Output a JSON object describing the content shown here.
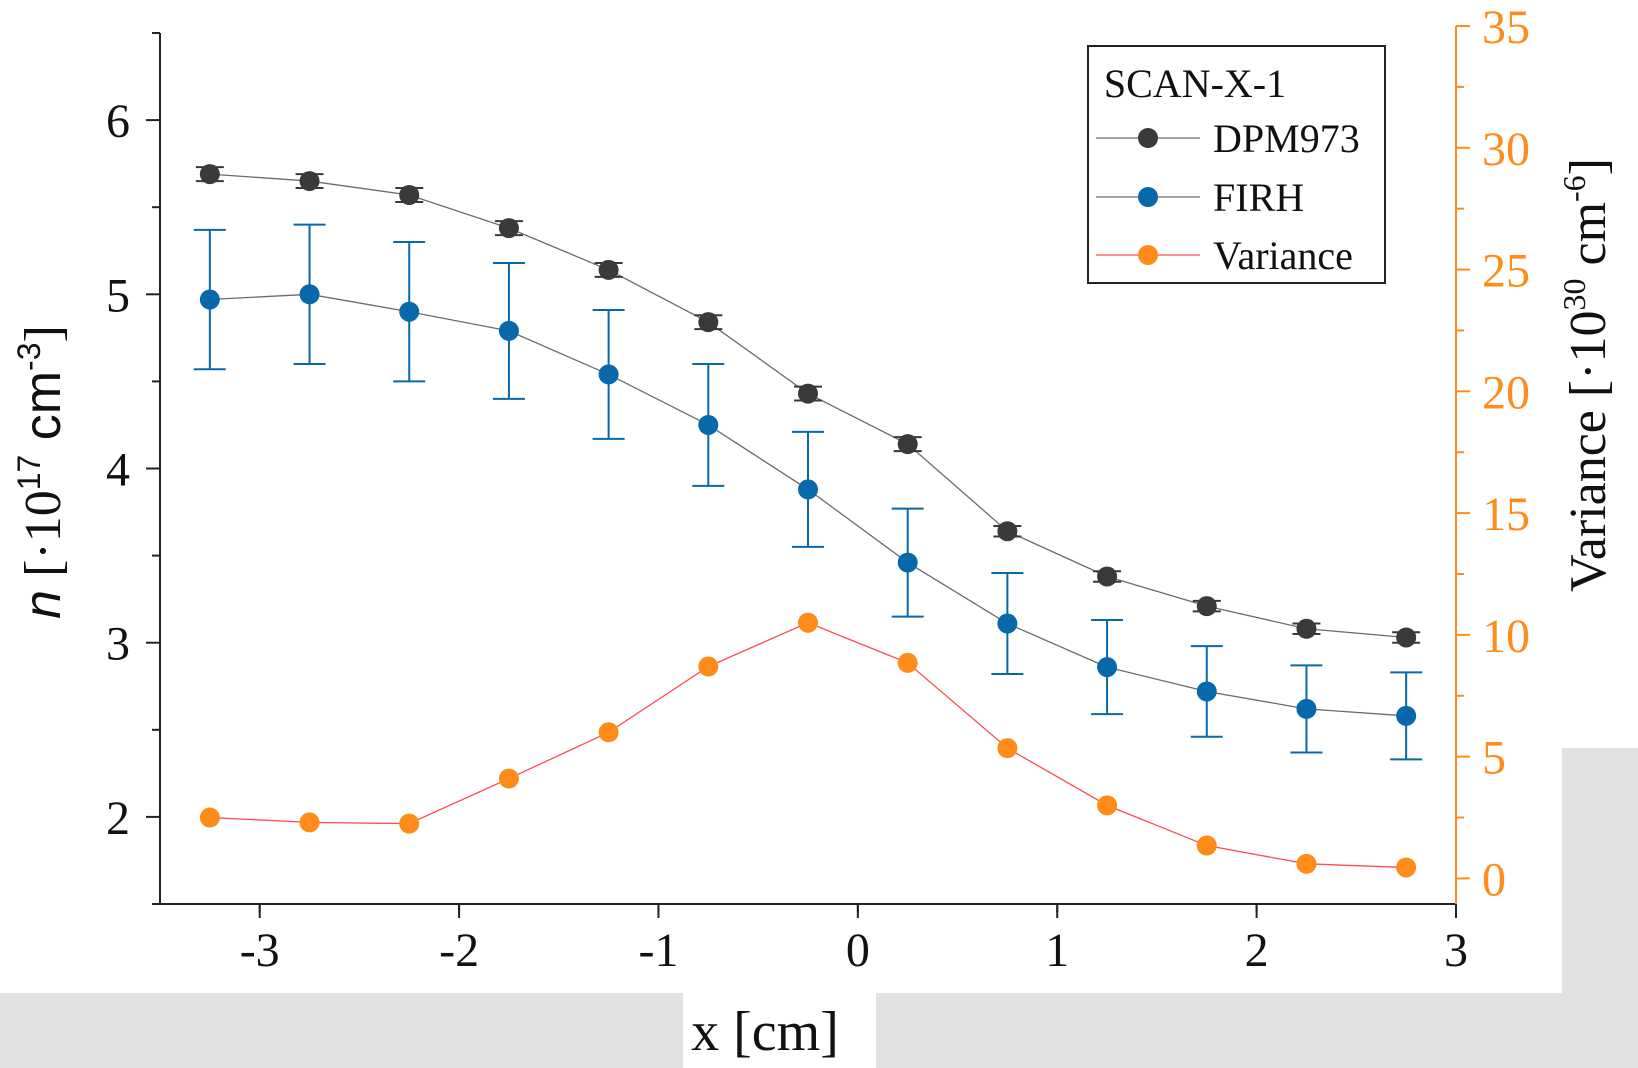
{
  "chart_data": {
    "type": "scatter",
    "xlabel": "x [cm]",
    "ylabel": {
      "italic": "n",
      "prefix": " [·10",
      "sup": "17",
      "suffix": " cm",
      "sup2": "-3",
      "close": "]"
    },
    "y2label": {
      "prefix": "Variance [·10",
      "sup": "30",
      "suffix": " cm",
      "sup2": "-6",
      "close": "]"
    },
    "xlim": [
      -3.5,
      3
    ],
    "ylim": [
      1.5,
      6.5
    ],
    "y2lim": [
      -1.05,
      35
    ],
    "xticks": [
      "-3",
      "-2",
      "-1",
      "0",
      "1",
      "2",
      "3"
    ],
    "yticks": [
      "2",
      "3",
      "4",
      "5",
      "6"
    ],
    "y2ticks": [
      "0",
      "5",
      "10",
      "15",
      "20",
      "25",
      "30",
      "35"
    ],
    "legend": {
      "title": "SCAN-X-1",
      "position": "top-right"
    },
    "x": [
      -3.25,
      -2.75,
      -2.25,
      -1.75,
      -1.25,
      -0.75,
      -0.25,
      0.25,
      0.75,
      1.25,
      1.75,
      2.25,
      2.75
    ],
    "series": [
      {
        "name": "DPM973",
        "axis": "left",
        "color": "#3a3a3a",
        "values": [
          5.69,
          5.65,
          5.57,
          5.38,
          5.14,
          4.84,
          4.43,
          4.14,
          3.64,
          3.38,
          3.21,
          3.08,
          3.03
        ],
        "errors": [
          0.04,
          0.04,
          0.04,
          0.04,
          0.04,
          0.04,
          0.04,
          0.04,
          0.03,
          0.03,
          0.03,
          0.03,
          0.03
        ]
      },
      {
        "name": "FIRH",
        "axis": "left",
        "color": "#0868ac",
        "values": [
          4.97,
          5.0,
          4.9,
          4.79,
          4.54,
          4.25,
          3.88,
          3.46,
          3.11,
          2.86,
          2.72,
          2.62,
          2.58
        ],
        "errors": [
          0.4,
          0.4,
          0.4,
          0.39,
          0.37,
          0.35,
          0.33,
          0.31,
          0.29,
          0.27,
          0.26,
          0.25,
          0.25
        ]
      },
      {
        "name": "Variance",
        "axis": "right",
        "color": "#ff8c1a",
        "values": [
          2.5,
          2.3,
          2.25,
          4.1,
          6.0,
          8.7,
          10.5,
          8.85,
          5.35,
          3.0,
          1.35,
          0.6,
          0.45
        ]
      }
    ]
  }
}
